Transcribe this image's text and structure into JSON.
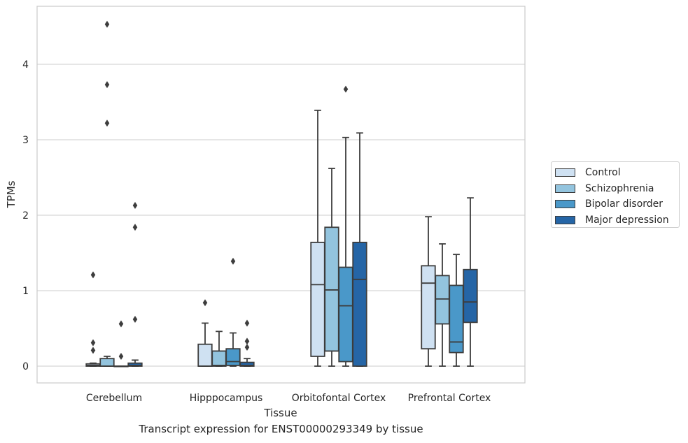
{
  "chart_data": {
    "type": "box",
    "title": "",
    "caption": "Transcript expression for ENST00000293349 by tissue",
    "xlabel": "Tissue",
    "ylabel": "TPMs",
    "ylim": [
      -0.22,
      4.85
    ],
    "yticks": [
      0,
      1,
      2,
      3,
      4
    ],
    "grid": "horizontal",
    "legend_placement": "right",
    "categories": [
      "Cerebellum",
      "Hipppocampus",
      "Orbitofontal Cortex",
      "Prefrontal Cortex"
    ],
    "series": [
      {
        "name": "Control",
        "color": "#cfe1f2",
        "boxes": [
          {
            "whislo": 0,
            "q1": 0,
            "med": 0.01,
            "q3": 0.03,
            "whishi": 0.04,
            "fliers": [
              0.21,
              0.31,
              1.21
            ]
          },
          {
            "whislo": 0,
            "q1": 0,
            "med": 0,
            "q3": 0.29,
            "whishi": 0.57,
            "fliers": [
              0.84
            ]
          },
          {
            "whislo": 0,
            "q1": 0.13,
            "med": 1.08,
            "q3": 1.64,
            "whishi": 3.39,
            "fliers": []
          },
          {
            "whislo": 0,
            "q1": 0.23,
            "med": 1.1,
            "q3": 1.33,
            "whishi": 1.98,
            "fliers": []
          }
        ]
      },
      {
        "name": "Schizophrenia",
        "color": "#93c4de",
        "boxes": [
          {
            "whislo": 0,
            "q1": 0,
            "med": 0,
            "q3": 0.1,
            "whishi": 0.13,
            "fliers": [
              3.22,
              3.73,
              4.53
            ]
          },
          {
            "whislo": 0,
            "q1": 0,
            "med": 0.01,
            "q3": 0.2,
            "whishi": 0.46,
            "fliers": []
          },
          {
            "whislo": 0,
            "q1": 0.2,
            "med": 1.01,
            "q3": 1.84,
            "whishi": 2.62,
            "fliers": []
          },
          {
            "whislo": 0,
            "q1": 0.56,
            "med": 0.89,
            "q3": 1.2,
            "whishi": 1.62,
            "fliers": []
          }
        ]
      },
      {
        "name": "Bipolar disorder",
        "color": "#4a98c9",
        "boxes": [
          {
            "whislo": 0,
            "q1": 0,
            "med": 0,
            "q3": 0,
            "whishi": 0,
            "fliers": [
              0.13,
              0.56
            ]
          },
          {
            "whislo": 0,
            "q1": 0.01,
            "med": 0.06,
            "q3": 0.23,
            "whishi": 0.44,
            "fliers": [
              1.39
            ]
          },
          {
            "whislo": 0,
            "q1": 0.06,
            "med": 0.8,
            "q3": 1.31,
            "whishi": 3.03,
            "fliers": [
              3.67
            ]
          },
          {
            "whislo": 0,
            "q1": 0.18,
            "med": 0.32,
            "q3": 1.07,
            "whishi": 1.48,
            "fliers": []
          }
        ]
      },
      {
        "name": "Major depression",
        "color": "#2565a6",
        "boxes": [
          {
            "whislo": 0,
            "q1": 0,
            "med": 0.01,
            "q3": 0.04,
            "whishi": 0.08,
            "fliers": [
              0.62,
              1.84,
              2.13
            ]
          },
          {
            "whislo": 0,
            "q1": 0,
            "med": 0.01,
            "q3": 0.05,
            "whishi": 0.1,
            "fliers": [
              0.25,
              0.33,
              0.57
            ]
          },
          {
            "whislo": 0,
            "q1": 0,
            "med": 1.15,
            "q3": 1.64,
            "whishi": 3.09,
            "fliers": []
          },
          {
            "whislo": 0,
            "q1": 0.58,
            "med": 0.85,
            "q3": 1.28,
            "whishi": 2.23,
            "fliers": []
          }
        ]
      }
    ]
  }
}
